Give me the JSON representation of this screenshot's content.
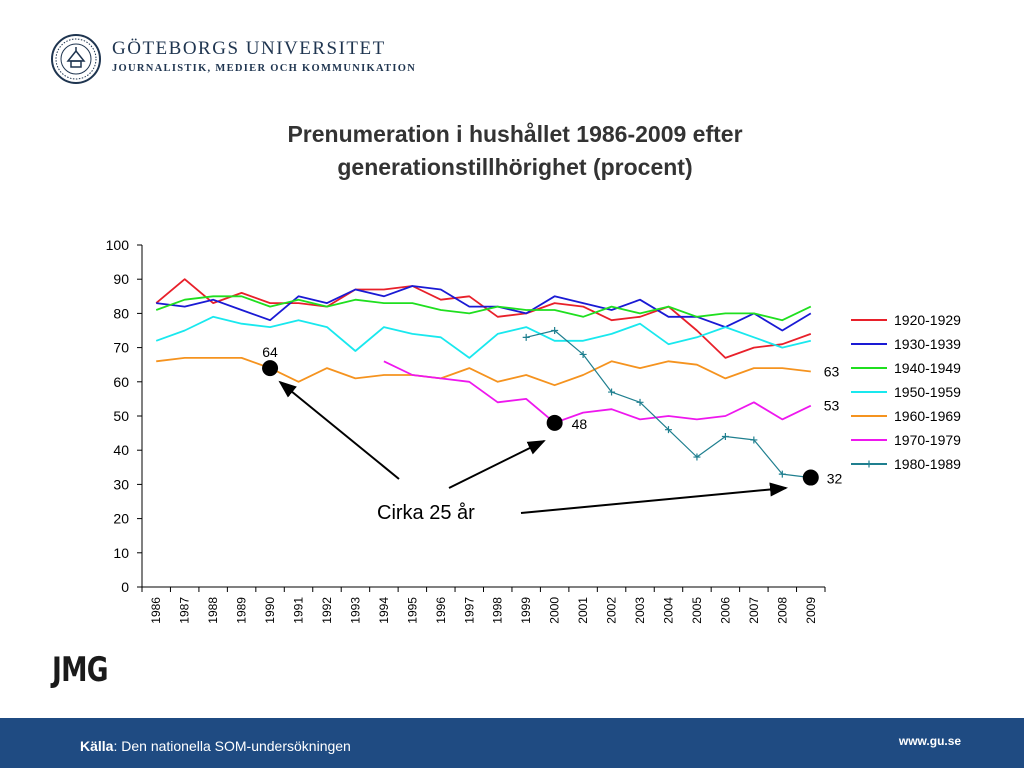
{
  "header": {
    "university": "GÖTEBORGS UNIVERSITET",
    "department": "JOURNALISTIK, MEDIER OCH KOMMUNIKATION"
  },
  "slide": {
    "title_line1": "Prenumeration i hushållet 1986-2009 efter",
    "title_line2": "generationstillhörighet (procent)"
  },
  "logo": {
    "text": "JMG"
  },
  "footer": {
    "source_label": "Källa",
    "source_text": ": Den nationella SOM-undersökningen",
    "url": "www.gu.se"
  },
  "colors": {
    "footer_bg": "#1f4b82",
    "header_text": "#1f3550"
  },
  "chart_data": {
    "type": "line",
    "title": "Prenumeration i hushållet 1986-2009 efter generationstillhörighet (procent)",
    "xlabel": "",
    "ylabel": "",
    "ylim": [
      0,
      100
    ],
    "yticks": [
      0,
      10,
      20,
      30,
      40,
      50,
      60,
      70,
      80,
      90,
      100
    ],
    "x": [
      "1986",
      "1987",
      "1988",
      "1989",
      "1990",
      "1991",
      "1992",
      "1993",
      "1994",
      "1995",
      "1996",
      "1997",
      "1998",
      "1999",
      "2000",
      "2001",
      "2002",
      "2003",
      "2004",
      "2005",
      "2006",
      "2007",
      "2008",
      "2009"
    ],
    "legend_position": "right",
    "grid": false,
    "series": [
      {
        "name": "1920-1929",
        "color": "#e8202a",
        "values": [
          83,
          90,
          83,
          86,
          83,
          83,
          82,
          87,
          87,
          88,
          84,
          85,
          79,
          80,
          83,
          82,
          78,
          79,
          82,
          75,
          67,
          70,
          71,
          74
        ]
      },
      {
        "name": "1930-1939",
        "color": "#1a1ad4",
        "values": [
          83,
          82,
          84,
          81,
          78,
          85,
          83,
          87,
          85,
          88,
          87,
          82,
          82,
          80,
          85,
          83,
          81,
          84,
          79,
          79,
          76,
          80,
          75,
          80
        ]
      },
      {
        "name": "1940-1949",
        "color": "#1fdf1f",
        "values": [
          81,
          84,
          85,
          85,
          82,
          84,
          82,
          84,
          83,
          83,
          81,
          80,
          82,
          81,
          81,
          79,
          82,
          80,
          82,
          79,
          80,
          80,
          78,
          82
        ]
      },
      {
        "name": "1950-1959",
        "color": "#19e8ee",
        "values": [
          72,
          75,
          79,
          77,
          76,
          78,
          76,
          69,
          76,
          74,
          73,
          67,
          74,
          76,
          72,
          72,
          74,
          77,
          71,
          73,
          76,
          73,
          70,
          72
        ]
      },
      {
        "name": "1960-1969",
        "color": "#f5931f",
        "values": [
          66,
          67,
          67,
          67,
          64,
          60,
          64,
          61,
          62,
          62,
          61,
          64,
          60,
          62,
          59,
          62,
          66,
          64,
          66,
          65,
          61,
          64,
          64,
          63
        ]
      },
      {
        "name": "1970-1979",
        "color": "#ee17ee",
        "values": [
          null,
          null,
          null,
          null,
          null,
          null,
          null,
          null,
          66,
          62,
          61,
          60,
          54,
          55,
          48,
          51,
          52,
          49,
          50,
          49,
          50,
          54,
          49,
          53
        ]
      },
      {
        "name": "1980-1989",
        "color": "#1f7f8f",
        "marker": "plus",
        "values": [
          null,
          null,
          null,
          null,
          null,
          null,
          null,
          null,
          null,
          null,
          null,
          null,
          null,
          73,
          75,
          68,
          57,
          54,
          46,
          38,
          44,
          43,
          33,
          32
        ]
      }
    ],
    "annotations": [
      {
        "text": "64",
        "x": "1990",
        "y": 64
      },
      {
        "text": "48",
        "x": "2000",
        "y": 48
      },
      {
        "text": "63",
        "x": "2009",
        "y": 63
      },
      {
        "text": "53",
        "x": "2009",
        "y": 53
      },
      {
        "text": "32",
        "x": "2009",
        "y": 32
      },
      {
        "text": "Cirka 25 år"
      }
    ],
    "highlight_points": [
      {
        "x": "1990",
        "y": 64
      },
      {
        "x": "2000",
        "y": 48
      },
      {
        "x": "2009",
        "y": 32
      }
    ]
  }
}
